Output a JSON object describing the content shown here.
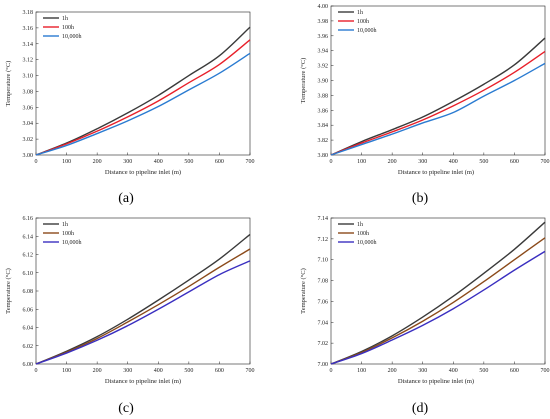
{
  "chart_data": [
    {
      "type": "line",
      "panel_label": "(a)",
      "xlabel": "Distance to pipeline inlet (m)",
      "ylabel": "Temperature (°C)",
      "xlim": [
        0,
        700
      ],
      "ylim": [
        3.0,
        3.18
      ],
      "xticks": [
        0,
        100,
        200,
        300,
        400,
        500,
        600,
        700
      ],
      "yticks": [
        3.0,
        3.02,
        3.04,
        3.06,
        3.08,
        3.1,
        3.12,
        3.14,
        3.16,
        3.18
      ],
      "ytick_decimals": 2,
      "x": [
        0,
        100,
        200,
        300,
        400,
        500,
        600,
        700
      ],
      "series": [
        {
          "name": "1h",
          "color": "#3a3a3a",
          "values": [
            3.0,
            3.015,
            3.033,
            3.053,
            3.075,
            3.1,
            3.125,
            3.161
          ]
        },
        {
          "name": "100h",
          "color": "#e8202a",
          "values": [
            3.0,
            3.014,
            3.03,
            3.048,
            3.068,
            3.091,
            3.114,
            3.145
          ]
        },
        {
          "name": "10,000h",
          "color": "#2a7bd1",
          "values": [
            3.0,
            3.012,
            3.027,
            3.043,
            3.061,
            3.082,
            3.103,
            3.128
          ]
        }
      ],
      "legend": "top-left"
    },
    {
      "type": "line",
      "panel_label": "(b)",
      "xlabel": "Distance to pipeline inlet (m)",
      "ylabel": "Temperature (°C)",
      "xlim": [
        0,
        700
      ],
      "ylim": [
        3.8,
        4.0
      ],
      "xticks": [
        0,
        100,
        200,
        300,
        400,
        500,
        600,
        700
      ],
      "yticks": [
        3.8,
        3.82,
        3.84,
        3.86,
        3.88,
        3.9,
        3.92,
        3.94,
        3.96,
        3.98,
        4.0
      ],
      "ytick_decimals": 2,
      "x": [
        0,
        100,
        200,
        300,
        400,
        500,
        600,
        700
      ],
      "series": [
        {
          "name": "1h",
          "color": "#3a3a3a",
          "values": [
            3.8,
            3.818,
            3.834,
            3.851,
            3.872,
            3.895,
            3.921,
            3.957
          ]
        },
        {
          "name": "100h",
          "color": "#e8202a",
          "values": [
            3.8,
            3.816,
            3.831,
            3.847,
            3.866,
            3.887,
            3.911,
            3.939
          ]
        },
        {
          "name": "10,000h",
          "color": "#2a7bd1",
          "values": [
            3.8,
            3.814,
            3.828,
            3.843,
            3.857,
            3.879,
            3.9,
            3.923
          ]
        }
      ],
      "legend": "top-left"
    },
    {
      "type": "line",
      "panel_label": "(c)",
      "xlabel": "Distance to pipeline inlet (m)",
      "ylabel": "Temperature (°C)",
      "xlim": [
        0,
        700
      ],
      "ylim": [
        6.0,
        6.16
      ],
      "xticks": [
        0,
        100,
        200,
        300,
        400,
        500,
        600,
        700
      ],
      "yticks": [
        6.0,
        6.02,
        6.04,
        6.06,
        6.08,
        6.1,
        6.12,
        6.14,
        6.16
      ],
      "ytick_decimals": 2,
      "x": [
        0,
        100,
        200,
        300,
        400,
        500,
        600,
        700
      ],
      "series": [
        {
          "name": "1h",
          "color": "#3a3a3a",
          "values": [
            6.0,
            6.014,
            6.03,
            6.049,
            6.07,
            6.092,
            6.115,
            6.142
          ]
        },
        {
          "name": "100h",
          "color": "#8b4a1a",
          "values": [
            6.0,
            6.013,
            6.028,
            6.046,
            6.065,
            6.085,
            6.106,
            6.126
          ]
        },
        {
          "name": "10,000h",
          "color": "#3a2fc0",
          "values": [
            6.0,
            6.012,
            6.026,
            6.042,
            6.06,
            6.079,
            6.098,
            6.113
          ]
        }
      ],
      "legend": "top-left"
    },
    {
      "type": "line",
      "panel_label": "(d)",
      "xlabel": "Distance to pipeline inlet (m)",
      "ylabel": "Temperature (°C)",
      "xlim": [
        0,
        700
      ],
      "ylim": [
        7.0,
        7.14
      ],
      "xticks": [
        0,
        100,
        200,
        300,
        400,
        500,
        600,
        700
      ],
      "yticks": [
        7.0,
        7.02,
        7.04,
        7.06,
        7.08,
        7.1,
        7.12,
        7.14
      ],
      "ytick_decimals": 2,
      "x": [
        0,
        100,
        200,
        300,
        400,
        500,
        600,
        700
      ],
      "series": [
        {
          "name": "1h",
          "color": "#3a3a3a",
          "values": [
            7.0,
            7.012,
            7.027,
            7.045,
            7.065,
            7.087,
            7.11,
            7.136
          ]
        },
        {
          "name": "100h",
          "color": "#8b4a1a",
          "values": [
            7.0,
            7.011,
            7.025,
            7.041,
            7.059,
            7.079,
            7.1,
            7.121
          ]
        },
        {
          "name": "10,000h",
          "color": "#3a2fc0",
          "values": [
            7.0,
            7.01,
            7.023,
            7.037,
            7.053,
            7.071,
            7.09,
            7.108
          ]
        }
      ],
      "legend": "top-left"
    }
  ]
}
